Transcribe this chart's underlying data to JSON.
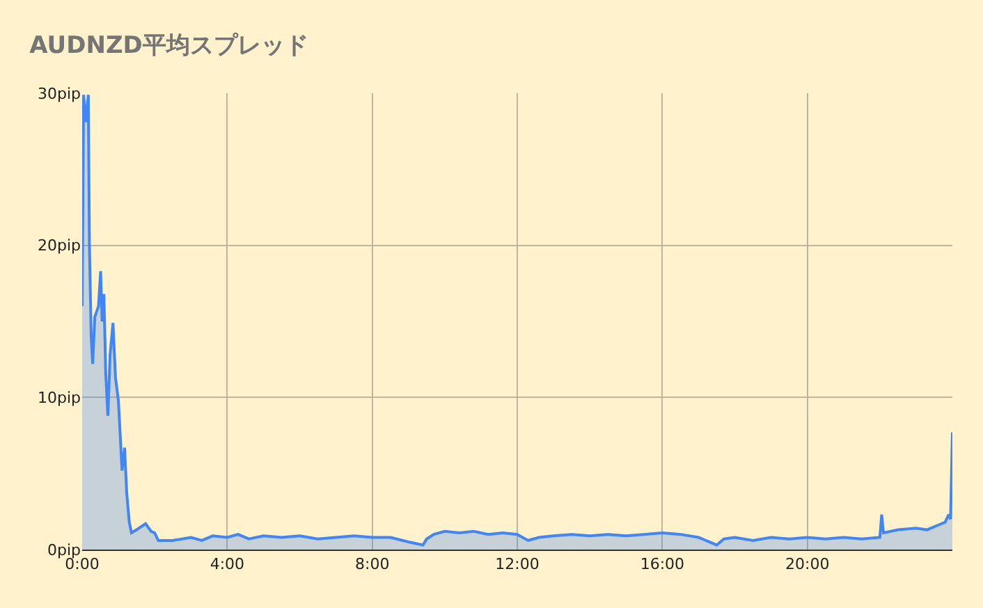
{
  "chart_data": {
    "type": "area",
    "title": "AUDNZD平均スプレッド",
    "x": [
      0,
      0.04,
      0.1,
      0.17,
      0.2,
      0.25,
      0.29,
      0.35,
      0.45,
      0.51,
      0.55,
      0.6,
      0.65,
      0.71,
      0.77,
      0.85,
      0.92,
      1.0,
      1.1,
      1.17,
      1.23,
      1.3,
      1.36,
      1.5,
      1.75,
      1.9,
      2.0,
      2.1,
      2.5,
      3.0,
      3.3,
      3.6,
      4.0,
      4.3,
      4.6,
      5.0,
      5.5,
      6.0,
      6.5,
      7.0,
      7.5,
      8.0,
      8.5,
      9.0,
      9.4,
      9.5,
      9.7,
      10.0,
      10.4,
      10.8,
      11.2,
      11.6,
      12.0,
      12.3,
      12.6,
      13.0,
      13.5,
      14.0,
      14.5,
      15.0,
      15.5,
      16.0,
      16.5,
      17.0,
      17.5,
      17.7,
      18.0,
      18.5,
      19.0,
      19.5,
      20.0,
      20.5,
      21.0,
      21.5,
      22.0,
      22.05,
      22.1,
      22.5,
      23.0,
      23.3,
      23.6,
      23.8,
      23.9,
      23.95,
      24.0
    ],
    "series": [
      {
        "color": "#4285f4",
        "values": [
          16,
          29.9,
          28.1,
          29.9,
          20.1,
          14,
          12.2,
          15.3,
          16,
          18.3,
          15.0,
          16.8,
          11.6,
          8.8,
          12.8,
          14.9,
          11.3,
          9.8,
          5.2,
          6.7,
          3.7,
          1.8,
          1.1,
          1.3,
          1.7,
          1.2,
          1.1,
          0.6,
          0.6,
          0.8,
          0.6,
          0.9,
          0.8,
          1.0,
          0.7,
          0.9,
          0.8,
          0.9,
          0.7,
          0.8,
          0.9,
          0.8,
          0.8,
          0.5,
          0.3,
          0.7,
          1.0,
          1.2,
          1.1,
          1.2,
          1.0,
          1.1,
          1.0,
          0.6,
          0.8,
          0.9,
          1.0,
          0.9,
          1.0,
          0.9,
          1.0,
          1.1,
          1.0,
          0.8,
          0.3,
          0.7,
          0.8,
          0.6,
          0.8,
          0.7,
          0.8,
          0.7,
          0.8,
          0.7,
          0.8,
          2.3,
          1.1,
          1.3,
          1.4,
          1.3,
          1.6,
          1.8,
          2.3,
          2.0,
          7.7
        ]
      }
    ],
    "xlim": [
      0,
      24
    ],
    "xticks": [
      {
        "value": 0,
        "label": "0:00"
      },
      {
        "value": 4,
        "label": "4:00"
      },
      {
        "value": 8,
        "label": "8:00"
      },
      {
        "value": 12,
        "label": "12:00"
      },
      {
        "value": 16,
        "label": "16:00"
      },
      {
        "value": 20,
        "label": "20:00"
      }
    ],
    "ylim": [
      0,
      30
    ],
    "yticks": [
      {
        "value": 0,
        "label": "0pip"
      },
      {
        "value": 10,
        "label": "10pip"
      },
      {
        "value": 20,
        "label": "20pip"
      },
      {
        "value": 30,
        "label": "30pip"
      }
    ],
    "grid": true
  }
}
